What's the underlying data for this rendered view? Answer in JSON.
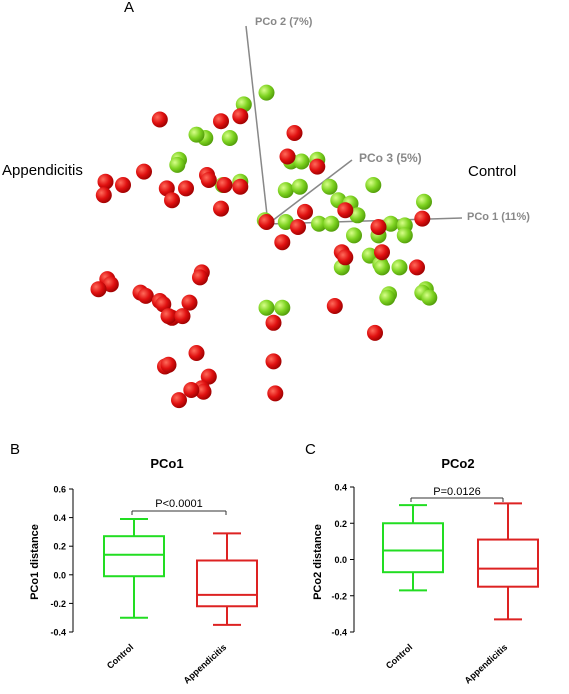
{
  "colors": {
    "control": "#7ed321",
    "appendicitis": "#e01010",
    "control_box": "#22dd22",
    "appendicitis_box": "#dd2222",
    "axis_gray": "#888888"
  },
  "panels": {
    "a": "A",
    "b": "B",
    "c": "C"
  },
  "chart_data": [
    {
      "type": "scatter",
      "panel": "A",
      "projection": "3d-pcoa",
      "axes": [
        {
          "label": "PCo 1 (11%)",
          "range": [
            -1.0,
            1.0
          ]
        },
        {
          "label": "PCo 2 (7%)",
          "range": [
            -1.0,
            1.0
          ]
        },
        {
          "label": "PCo 3 (5%)",
          "range": [
            -1.0,
            1.0
          ]
        }
      ],
      "group_labels": {
        "appendicitis": "Appendicitis",
        "control": "Control"
      },
      "series": [
        {
          "name": "Control",
          "color": "#7ed321",
          "points": [
            [
              -0.02,
              0.77
            ],
            [
              -0.15,
              0.7
            ],
            [
              -0.52,
              0.37
            ],
            [
              -0.53,
              0.34
            ],
            [
              -0.27,
              0.22
            ],
            [
              -0.17,
              0.24
            ],
            [
              0.12,
              0.36
            ],
            [
              0.18,
              0.36
            ],
            [
              0.27,
              0.37
            ],
            [
              0.09,
              0.19
            ],
            [
              0.34,
              0.21
            ],
            [
              0.39,
              0.13
            ],
            [
              0.46,
              0.11
            ],
            [
              0.17,
              0.21
            ],
            [
              0.59,
              0.22
            ],
            [
              -0.03,
              0.01
            ],
            [
              0.09,
              0.0
            ],
            [
              0.28,
              -0.01
            ],
            [
              0.35,
              -0.01
            ],
            [
              0.69,
              -0.01
            ],
            [
              0.5,
              0.04
            ],
            [
              0.48,
              -0.08
            ],
            [
              0.77,
              -0.02
            ],
            [
              0.88,
              0.12
            ],
            [
              0.62,
              -0.08
            ],
            [
              0.77,
              -0.08
            ],
            [
              0.57,
              -0.2
            ],
            [
              0.63,
              -0.25
            ],
            [
              0.41,
              -0.27
            ],
            [
              0.64,
              -0.27
            ],
            [
              0.74,
              -0.27
            ],
            [
              0.68,
              -0.43
            ],
            [
              0.67,
              -0.45
            ],
            [
              0.89,
              -0.4
            ],
            [
              0.87,
              -0.42
            ],
            [
              0.91,
              -0.45
            ],
            [
              0.07,
              -0.51
            ],
            [
              -0.02,
              -0.51
            ],
            [
              -0.37,
              0.5
            ],
            [
              -0.23,
              0.5
            ],
            [
              -0.42,
              0.52
            ]
          ]
        },
        {
          "name": "Appendicitis",
          "color": "#e01010",
          "points": [
            [
              -0.28,
              0.6
            ],
            [
              -0.17,
              0.63
            ],
            [
              -0.63,
              0.61
            ],
            [
              0.14,
              0.53
            ],
            [
              0.1,
              0.39
            ],
            [
              0.27,
              0.33
            ],
            [
              -0.72,
              0.3
            ],
            [
              -0.84,
              0.22
            ],
            [
              -0.94,
              0.24
            ],
            [
              -0.95,
              0.16
            ],
            [
              -0.48,
              0.2
            ],
            [
              -0.36,
              0.28
            ],
            [
              -0.35,
              0.25
            ],
            [
              -0.26,
              0.22
            ],
            [
              -0.17,
              0.21
            ],
            [
              -0.59,
              0.2
            ],
            [
              -0.56,
              0.13
            ],
            [
              -0.28,
              0.08
            ],
            [
              0.2,
              0.06
            ],
            [
              0.43,
              0.07
            ],
            [
              -0.02,
              0.0
            ],
            [
              0.16,
              -0.03
            ],
            [
              0.87,
              0.02
            ],
            [
              0.62,
              -0.03
            ],
            [
              0.07,
              -0.12
            ],
            [
              0.41,
              -0.18
            ],
            [
              0.43,
              -0.21
            ],
            [
              0.64,
              -0.18
            ],
            [
              0.84,
              -0.27
            ],
            [
              -0.39,
              -0.3
            ],
            [
              -0.4,
              -0.33
            ],
            [
              -0.93,
              -0.34
            ],
            [
              -0.91,
              -0.37
            ],
            [
              -0.98,
              -0.4
            ],
            [
              -0.74,
              -0.42
            ],
            [
              -0.71,
              -0.44
            ],
            [
              -0.63,
              -0.47
            ],
            [
              -0.61,
              -0.49
            ],
            [
              -0.46,
              -0.48
            ],
            [
              0.37,
              -0.5
            ],
            [
              -0.56,
              -0.57
            ],
            [
              -0.58,
              -0.56
            ],
            [
              -0.5,
              -0.56
            ],
            [
              0.02,
              -0.6
            ],
            [
              0.6,
              -0.66
            ],
            [
              -0.42,
              -0.78
            ],
            [
              -0.6,
              -0.86
            ],
            [
              -0.58,
              -0.85
            ],
            [
              -0.35,
              -0.92
            ],
            [
              -0.39,
              -0.99
            ],
            [
              -0.38,
              -1.01
            ],
            [
              -0.45,
              -1.0
            ],
            [
              0.02,
              -0.83
            ],
            [
              -0.52,
              -1.06
            ],
            [
              0.03,
              -1.02
            ]
          ]
        }
      ]
    },
    {
      "type": "box",
      "panel": "B",
      "title": "PCo1",
      "ylabel": "PCo1 distance",
      "ylim": [
        -0.4,
        0.6
      ],
      "yticks": [
        "-0.4",
        "-0.2",
        "0.0",
        "0.2",
        "0.4",
        "0.6"
      ],
      "categories": [
        "Control",
        "Appendicitis"
      ],
      "boxes": [
        {
          "name": "Control",
          "min": -0.3,
          "q1": -0.01,
          "median": 0.14,
          "q3": 0.27,
          "max": 0.39,
          "color": "#22dd22"
        },
        {
          "name": "Appendicitis",
          "min": -0.35,
          "q1": -0.22,
          "median": -0.14,
          "q3": 0.1,
          "max": 0.29,
          "color": "#dd2222"
        }
      ],
      "annotation": "P<0.0001"
    },
    {
      "type": "box",
      "panel": "C",
      "title": "PCo2",
      "ylabel": "PCo2 distance",
      "ylim": [
        -0.4,
        0.4
      ],
      "yticks": [
        "-0.4",
        "-0.2",
        "0.0",
        "0.2",
        "0.4"
      ],
      "categories": [
        "Control",
        "Appendicitis"
      ],
      "boxes": [
        {
          "name": "Control",
          "min": -0.17,
          "q1": -0.07,
          "median": 0.05,
          "q3": 0.2,
          "max": 0.3,
          "color": "#22dd22"
        },
        {
          "name": "Appendicitis",
          "min": -0.33,
          "q1": -0.15,
          "median": -0.05,
          "q3": 0.11,
          "max": 0.31,
          "color": "#dd2222"
        }
      ],
      "annotation": "P=0.0126"
    }
  ]
}
